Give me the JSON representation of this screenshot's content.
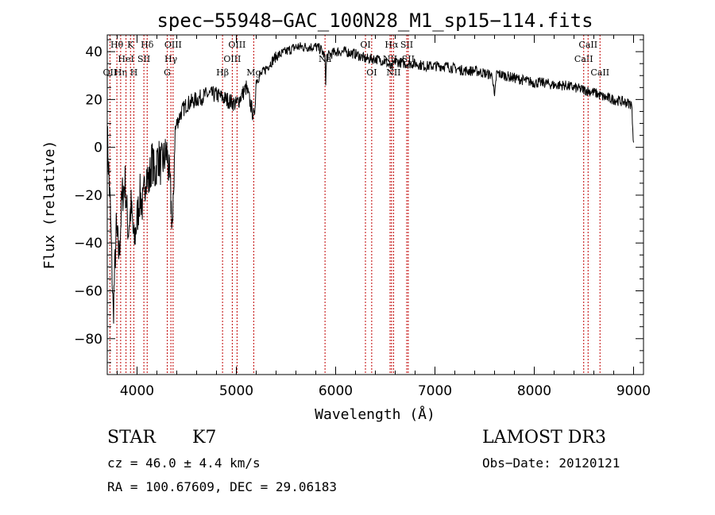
{
  "chart_data": {
    "type": "line",
    "title": "spec−55948−GAC_100N28_M1_sp15−114.fits",
    "xlabel": "Wavelength (Å)",
    "ylabel": "Flux (relative)",
    "xlim": [
      3700,
      9100
    ],
    "ylim": [
      -95,
      47
    ],
    "x_ticks": [
      4000,
      5000,
      6000,
      7000,
      8000,
      9000
    ],
    "y_ticks": [
      -80,
      -60,
      -40,
      -20,
      0,
      20,
      40
    ],
    "x_tick_labels": [
      "4000",
      "5000",
      "6000",
      "7000",
      "8000",
      "9000"
    ],
    "y_tick_labels": [
      "−80",
      "−60",
      "−40",
      "−20",
      "0",
      "20",
      "40"
    ],
    "series": [
      {
        "name": "flux",
        "x": [
          3700,
          3730,
          3760,
          3790,
          3820,
          3850,
          3880,
          3910,
          3940,
          3970,
          4000,
          4030,
          4060,
          4090,
          4120,
          4150,
          4180,
          4210,
          4240,
          4270,
          4300,
          4330,
          4360,
          4380,
          4400,
          4450,
          4500,
          4600,
          4700,
          4800,
          4900,
          5000,
          5100,
          5180,
          5200,
          5300,
          5400,
          5500,
          5600,
          5700,
          5800,
          5850,
          5890,
          5900,
          5910,
          6000,
          6100,
          6200,
          6300,
          6400,
          6500,
          6563,
          6600,
          6700,
          6800,
          6900,
          7000,
          7100,
          7200,
          7300,
          7400,
          7500,
          7580,
          7600,
          7620,
          7700,
          7800,
          7900,
          8000,
          8100,
          8200,
          8300,
          8400,
          8500,
          8600,
          8700,
          8800,
          8900,
          8980,
          9000
        ],
        "values": [
          5,
          -25,
          -70,
          -35,
          -45,
          -20,
          -15,
          -35,
          -25,
          -40,
          -30,
          -20,
          -25,
          -10,
          -15,
          -5,
          -12,
          -3,
          -8,
          -5,
          -2,
          -15,
          -35,
          5,
          10,
          15,
          18,
          20,
          22,
          22,
          20,
          18,
          25,
          12,
          28,
          33,
          38,
          40,
          42,
          42,
          42,
          41,
          38,
          28,
          38,
          40,
          40,
          39,
          37,
          37,
          36,
          33,
          36,
          35,
          35,
          34,
          34,
          34,
          33,
          32,
          32,
          31,
          30,
          20,
          31,
          30,
          29,
          28,
          27,
          27,
          26,
          26,
          25,
          24,
          23,
          21,
          20,
          19,
          18,
          2
        ]
      }
    ],
    "line_markers": [
      {
        "label": "OII",
        "x": 3727,
        "row": 2
      },
      {
        "label": "Hθ",
        "x": 3797,
        "row": 0
      },
      {
        "label": "Hη",
        "x": 3835,
        "row": 2
      },
      {
        "label": "HeI",
        "x": 3889,
        "row": 1
      },
      {
        "label": "K",
        "x": 3934,
        "row": 0
      },
      {
        "label": "H",
        "x": 3968,
        "row": 2
      },
      {
        "label": "SII",
        "x": 4069,
        "row": 1
      },
      {
        "label": "Hδ",
        "x": 4102,
        "row": 0
      },
      {
        "label": "G",
        "x": 4304,
        "row": 2
      },
      {
        "label": "Hγ",
        "x": 4341,
        "row": 1
      },
      {
        "label": "OIII",
        "x": 4363,
        "row": 0
      },
      {
        "label": "Hβ",
        "x": 4861,
        "row": 2
      },
      {
        "label": "OIII",
        "x": 4959,
        "row": 1
      },
      {
        "label": "OIII",
        "x": 5007,
        "row": 0
      },
      {
        "label": "Mg",
        "x": 5175,
        "row": 2
      },
      {
        "label": "Na",
        "x": 5893,
        "row": 1
      },
      {
        "label": "OI",
        "x": 6300,
        "row": 0
      },
      {
        "label": "OI",
        "x": 6363,
        "row": 2
      },
      {
        "label": "NII",
        "x": 6548,
        "row": 1
      },
      {
        "label": "Hα",
        "x": 6563,
        "row": 0
      },
      {
        "label": "NII",
        "x": 6583,
        "row": 2
      },
      {
        "label": "SII",
        "x": 6716,
        "row": 0
      },
      {
        "label": "SII",
        "x": 6731,
        "row": 1
      },
      {
        "label": "CaII",
        "x": 8498,
        "row": 1
      },
      {
        "label": "CaII",
        "x": 8542,
        "row": 0
      },
      {
        "label": "CaII",
        "x": 8662,
        "row": 2
      }
    ]
  },
  "info": {
    "class": "STAR",
    "subclass": "K7",
    "survey": "LAMOST DR3",
    "cz": "cz = 46.0 ± 4.4 km/s",
    "obs_date": "Obs−Date: 20120121",
    "coords": "RA = 100.67609, DEC =  29.06183"
  }
}
